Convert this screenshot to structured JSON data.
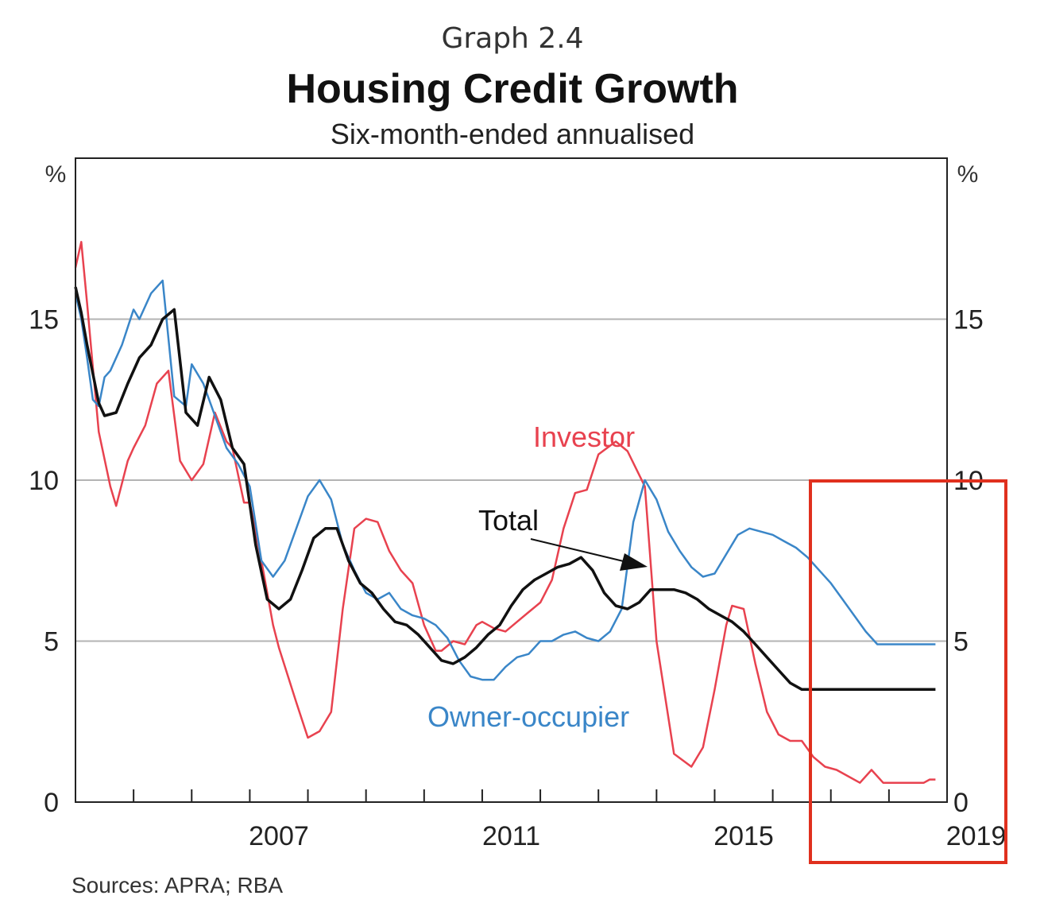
{
  "header": {
    "graph_number": "Graph 2.4",
    "title": "Housing Credit Growth",
    "subtitle": "Six-month-ended annualised"
  },
  "footer": {
    "sources": "Sources: APRA; RBA"
  },
  "colors": {
    "investor": "#e8424f",
    "owner_occupier": "#3a86c8",
    "total": "#111111",
    "gridline": "#b3b3b3",
    "highlight_box": "#e0301e"
  },
  "chart_data": {
    "type": "line",
    "title": "Housing Credit Growth",
    "subtitle": "Six-month-ended annualised",
    "xlabel": "",
    "ylabel": "%",
    "y_unit_left": "%",
    "y_unit_right": "%",
    "xlim": [
      2004.0,
      2019.0
    ],
    "ylim": [
      0,
      20
    ],
    "yticks": [
      0,
      5,
      10,
      15
    ],
    "x_ticks": [
      2005,
      2006,
      2007,
      2008,
      2009,
      2010,
      2011,
      2012,
      2013,
      2014,
      2015,
      2016,
      2017,
      2018
    ],
    "x_labels": [
      {
        "value": 2007.5,
        "label": "2007"
      },
      {
        "value": 2011.5,
        "label": "2011"
      },
      {
        "value": 2015.5,
        "label": "2015"
      },
      {
        "value": 2019.5,
        "label": "2019"
      }
    ],
    "grid": true,
    "annotations": [
      {
        "text": "Investor",
        "series": "Investor"
      },
      {
        "text": "Total",
        "series": "Total",
        "arrow": true
      },
      {
        "text": "Owner-occupier",
        "series": "Owner-occupier"
      }
    ],
    "highlight": {
      "x_from": 2017.8,
      "x_to": 2019.3,
      "description": "recent period"
    },
    "series": [
      {
        "name": "Investor",
        "x": [
          2004.0,
          2004.1,
          2004.2,
          2004.3,
          2004.4,
          2004.6,
          2004.7,
          2004.9,
          2005.0,
          2005.2,
          2005.4,
          2005.6,
          2005.8,
          2006.0,
          2006.2,
          2006.4,
          2006.6,
          2006.7,
          2006.9,
          2007.0,
          2007.2,
          2007.4,
          2007.5,
          2007.8,
          2008.0,
          2008.2,
          2008.4,
          2008.6,
          2008.8,
          2009.0,
          2009.2,
          2009.4,
          2009.6,
          2009.8,
          2010.0,
          2010.2,
          2010.3,
          2010.5,
          2010.7,
          2010.9,
          2011.0,
          2011.2,
          2011.4,
          2011.6,
          2011.8,
          2012.0,
          2012.2,
          2012.4,
          2012.6,
          2012.8,
          2013.0,
          2013.3,
          2013.5,
          2013.8,
          2014.0,
          2014.3,
          2014.6,
          2014.8,
          2015.0,
          2015.2,
          2015.3,
          2015.5,
          2015.7,
          2015.9,
          2016.1,
          2016.3,
          2016.5,
          2016.7,
          2016.9,
          2017.1,
          2017.3,
          2017.5,
          2017.7,
          2017.9,
          2018.1,
          2018.3,
          2018.5,
          2018.6,
          2018.7,
          2018.8
        ],
        "values": [
          16.6,
          17.4,
          15.5,
          13.5,
          11.5,
          9.8,
          9.2,
          10.6,
          11.0,
          11.7,
          13.0,
          13.4,
          10.6,
          10.0,
          10.5,
          12.1,
          11.2,
          11.0,
          9.3,
          9.3,
          7.5,
          5.5,
          4.8,
          3.1,
          2.0,
          2.2,
          2.8,
          6.0,
          8.5,
          8.8,
          8.7,
          7.8,
          7.2,
          6.8,
          5.5,
          4.7,
          4.7,
          5.0,
          4.9,
          5.5,
          5.6,
          5.4,
          5.3,
          5.6,
          5.9,
          6.2,
          6.9,
          8.5,
          9.6,
          9.7,
          10.8,
          11.2,
          10.9,
          9.8,
          5.0,
          1.5,
          1.1,
          1.7,
          3.5,
          5.5,
          6.1,
          6.0,
          4.3,
          2.8,
          2.1,
          1.9,
          1.9,
          1.4,
          1.1,
          1.0,
          0.8,
          0.6,
          1.0,
          0.6,
          0.6,
          0.6,
          0.6,
          0.6,
          0.7,
          0.7
        ]
      },
      {
        "name": "Owner-occupier",
        "x": [
          2004.0,
          2004.1,
          2004.2,
          2004.3,
          2004.4,
          2004.5,
          2004.6,
          2004.8,
          2005.0,
          2005.1,
          2005.3,
          2005.5,
          2005.7,
          2005.9,
          2006.0,
          2006.2,
          2006.4,
          2006.6,
          2006.8,
          2007.0,
          2007.2,
          2007.4,
          2007.6,
          2007.8,
          2008.0,
          2008.2,
          2008.4,
          2008.6,
          2008.8,
          2009.0,
          2009.2,
          2009.4,
          2009.6,
          2009.8,
          2010.0,
          2010.2,
          2010.4,
          2010.6,
          2010.8,
          2011.0,
          2011.2,
          2011.4,
          2011.6,
          2011.8,
          2012.0,
          2012.2,
          2012.4,
          2012.6,
          2012.8,
          2013.0,
          2013.2,
          2013.4,
          2013.6,
          2013.8,
          2014.0,
          2014.2,
          2014.4,
          2014.6,
          2014.8,
          2015.0,
          2015.2,
          2015.4,
          2015.6,
          2015.8,
          2016.0,
          2016.2,
          2016.4,
          2016.6,
          2016.8,
          2017.0,
          2017.2,
          2017.4,
          2017.6,
          2017.8,
          2018.0,
          2018.2,
          2018.4,
          2018.6,
          2018.7,
          2018.8
        ],
        "values": [
          15.8,
          15.0,
          13.8,
          12.5,
          12.3,
          13.2,
          13.4,
          14.2,
          15.3,
          15.0,
          15.8,
          16.2,
          12.6,
          12.3,
          13.6,
          13.0,
          12.0,
          11.0,
          10.5,
          9.8,
          7.5,
          7.0,
          7.5,
          8.5,
          9.5,
          10.0,
          9.4,
          8.0,
          7.2,
          6.5,
          6.3,
          6.5,
          6.0,
          5.8,
          5.7,
          5.5,
          5.1,
          4.4,
          3.9,
          3.8,
          3.8,
          4.2,
          4.5,
          4.6,
          5.0,
          5.0,
          5.2,
          5.3,
          5.1,
          5.0,
          5.3,
          6.0,
          8.7,
          10.0,
          9.4,
          8.4,
          7.8,
          7.3,
          7.0,
          7.1,
          7.7,
          8.3,
          8.5,
          8.4,
          8.3,
          8.1,
          7.9,
          7.6,
          7.2,
          6.8,
          6.3,
          5.8,
          5.3,
          4.9,
          4.9,
          4.9,
          4.9,
          4.9,
          4.9,
          4.9
        ]
      },
      {
        "name": "Total",
        "x": [
          2004.0,
          2004.1,
          2004.2,
          2004.4,
          2004.5,
          2004.7,
          2004.9,
          2005.1,
          2005.3,
          2005.5,
          2005.7,
          2005.9,
          2006.1,
          2006.3,
          2006.5,
          2006.7,
          2006.9,
          2007.1,
          2007.3,
          2007.5,
          2007.7,
          2007.9,
          2008.1,
          2008.3,
          2008.5,
          2008.7,
          2008.9,
          2009.1,
          2009.3,
          2009.5,
          2009.7,
          2009.9,
          2010.1,
          2010.3,
          2010.5,
          2010.7,
          2010.9,
          2011.1,
          2011.3,
          2011.5,
          2011.7,
          2011.9,
          2012.1,
          2012.3,
          2012.5,
          2012.7,
          2012.9,
          2013.1,
          2013.3,
          2013.5,
          2013.7,
          2013.9,
          2014.1,
          2014.3,
          2014.5,
          2014.7,
          2014.9,
          2015.1,
          2015.3,
          2015.5,
          2015.7,
          2015.9,
          2016.1,
          2016.3,
          2016.5,
          2016.7,
          2016.9,
          2017.1,
          2017.3,
          2017.5,
          2017.7,
          2017.9,
          2018.1,
          2018.3,
          2018.5,
          2018.7,
          2018.8
        ],
        "values": [
          16.0,
          15.2,
          14.2,
          12.4,
          12.0,
          12.1,
          13.0,
          13.8,
          14.2,
          15.0,
          15.3,
          12.1,
          11.7,
          13.2,
          12.5,
          11.0,
          10.5,
          8.0,
          6.3,
          6.0,
          6.3,
          7.2,
          8.2,
          8.5,
          8.5,
          7.5,
          6.8,
          6.5,
          6.0,
          5.6,
          5.5,
          5.2,
          4.8,
          4.4,
          4.3,
          4.5,
          4.8,
          5.2,
          5.5,
          6.1,
          6.6,
          6.9,
          7.1,
          7.3,
          7.4,
          7.6,
          7.2,
          6.5,
          6.1,
          6.0,
          6.2,
          6.6,
          6.6,
          6.6,
          6.5,
          6.3,
          6.0,
          5.8,
          5.6,
          5.3,
          4.9,
          4.5,
          4.1,
          3.7,
          3.5,
          3.5,
          3.5,
          3.5,
          3.5,
          3.5,
          3.5,
          3.5,
          3.5,
          3.5,
          3.5,
          3.5,
          3.5
        ]
      }
    ]
  }
}
